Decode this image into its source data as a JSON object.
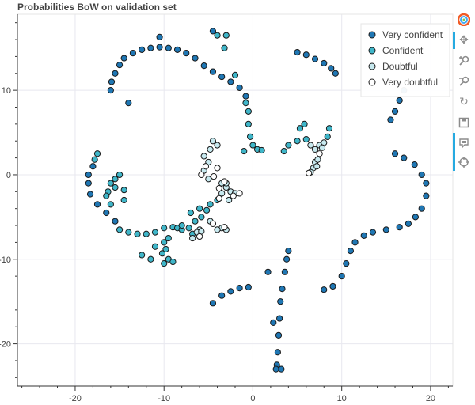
{
  "chart_data": {
    "type": "scatter",
    "title": "Probabilities BoW on validation set",
    "xlabel": "",
    "ylabel": "",
    "xlim": [
      -26.5,
      22.5
    ],
    "ylim": [
      -25,
      19
    ],
    "xticks": [
      -20,
      -10,
      0,
      10,
      20
    ],
    "yticks": [
      -20,
      -10,
      0,
      10
    ],
    "grid": true,
    "legend_position": "top-right",
    "series": [
      {
        "name": "Very confident",
        "color": "#1f77b4",
        "points": [
          [
            -16,
            10
          ],
          [
            -15.9,
            11
          ],
          [
            -15.5,
            12
          ],
          [
            -15,
            13
          ],
          [
            -14.5,
            13.8
          ],
          [
            -13.5,
            14.4
          ],
          [
            -12.5,
            14.8
          ],
          [
            -11.5,
            15
          ],
          [
            -10.5,
            15.1
          ],
          [
            -9.5,
            15
          ],
          [
            -8.5,
            14.8
          ],
          [
            -7.5,
            14.4
          ],
          [
            -6.5,
            13.8
          ],
          [
            -5.5,
            12.9
          ],
          [
            -4.5,
            12.2
          ],
          [
            -3.5,
            11.6
          ],
          [
            -2.5,
            11
          ],
          [
            -1.5,
            10.3
          ],
          [
            -0.8,
            9.3
          ],
          [
            -4.5,
            17
          ],
          [
            -14,
            8.5
          ],
          [
            -10.5,
            16.3
          ],
          [
            5,
            14.5
          ],
          [
            6,
            14.2
          ],
          [
            7,
            13.7
          ],
          [
            8,
            13.2
          ],
          [
            8.8,
            12.6
          ],
          [
            9.3,
            12
          ],
          [
            15.5,
            6.5
          ],
          [
            16,
            7.5
          ],
          [
            16.5,
            8.8
          ],
          [
            17,
            10
          ],
          [
            16,
            2.5
          ],
          [
            17,
            2
          ],
          [
            18.2,
            1.2
          ],
          [
            19,
            0
          ],
          [
            19.5,
            -1
          ],
          [
            19.5,
            -2.5
          ],
          [
            19,
            -4
          ],
          [
            18.3,
            -5
          ],
          [
            17.5,
            -5.8
          ],
          [
            16.5,
            -6.2
          ],
          [
            15,
            -6.5
          ],
          [
            13.5,
            -6.8
          ],
          [
            12.5,
            -7.2
          ],
          [
            11.5,
            -8
          ],
          [
            11,
            -9
          ],
          [
            10.5,
            -10.5
          ],
          [
            10,
            -12
          ],
          [
            9,
            -13.2
          ],
          [
            8,
            -13.6
          ],
          [
            -4.5,
            -15.2
          ],
          [
            -3.5,
            -14.3
          ],
          [
            -2.5,
            -13.8
          ],
          [
            -1.5,
            -13.4
          ],
          [
            -0.5,
            -13.3
          ],
          [
            4,
            -9
          ],
          [
            3.8,
            -10
          ],
          [
            3.6,
            -11.5
          ],
          [
            3.3,
            -13.5
          ],
          [
            3.1,
            -15
          ],
          [
            3,
            -17
          ],
          [
            2.9,
            -19
          ],
          [
            2.8,
            -21
          ],
          [
            2.7,
            -22.5
          ],
          [
            2.6,
            -23
          ],
          [
            3.2,
            -23
          ],
          [
            1.7,
            -11.5
          ],
          [
            2.3,
            -17.5
          ],
          [
            -18,
            1
          ],
          [
            -18.5,
            0
          ],
          [
            -18.5,
            -1
          ],
          [
            -18.3,
            -2.3
          ],
          [
            -17.5,
            -3.5
          ],
          [
            -16.5,
            -4.5
          ],
          [
            -15.5,
            -5.5
          ]
        ]
      },
      {
        "name": "Confident",
        "color": "#3fb6c9",
        "points": [
          [
            -0.8,
            8.5
          ],
          [
            -0.5,
            7.5
          ],
          [
            -0.5,
            6
          ],
          [
            -0.3,
            4.5
          ],
          [
            0,
            3.5
          ],
          [
            0.5,
            3
          ],
          [
            -1,
            2.8
          ],
          [
            1,
            2.9
          ],
          [
            -3,
            16.5
          ],
          [
            -4,
            16.5
          ],
          [
            -2,
            11.8
          ],
          [
            -3.2,
            15
          ],
          [
            3.5,
            2.8
          ],
          [
            4,
            3.5
          ],
          [
            5,
            4
          ],
          [
            6,
            4.2
          ],
          [
            5.3,
            5.5
          ],
          [
            5.8,
            6
          ],
          [
            8.4,
            4.5
          ],
          [
            8.6,
            5.5
          ],
          [
            -17.5,
            2.5
          ],
          [
            -17.8,
            1.8
          ],
          [
            -15.5,
            -0.5
          ],
          [
            -15,
            0
          ],
          [
            -16,
            -1
          ],
          [
            -15.5,
            -1.5
          ],
          [
            -16,
            -3.5
          ],
          [
            -14.5,
            -1.8
          ],
          [
            -14.5,
            -3
          ],
          [
            -16.3,
            -2
          ],
          [
            -16.5,
            -2.5
          ],
          [
            -15,
            -6.5
          ],
          [
            -14,
            -6.8
          ],
          [
            -13,
            -7
          ],
          [
            -12,
            -7
          ],
          [
            -11,
            -6.8
          ],
          [
            -10,
            -6.3
          ],
          [
            -9,
            -6.2
          ],
          [
            -8.5,
            -6.3
          ],
          [
            -8,
            -6.5
          ],
          [
            -12.5,
            -9.5
          ],
          [
            -11.5,
            -10
          ],
          [
            -11,
            -8.5
          ],
          [
            -10,
            -8
          ],
          [
            -10,
            -10.5
          ],
          [
            -9.5,
            -10
          ],
          [
            -10.2,
            -9.3
          ],
          [
            -9,
            -10.3
          ],
          [
            -8,
            -6
          ],
          [
            -9.5,
            -7.5
          ],
          [
            -9.8,
            -8.8
          ],
          [
            -7,
            -4.5
          ],
          [
            -6,
            -4
          ],
          [
            -5.2,
            -4.2
          ],
          [
            -4.8,
            -3.5
          ],
          [
            -4,
            -3
          ],
          [
            -5.8,
            -5
          ],
          [
            -6.5,
            -5.5
          ],
          [
            -7.2,
            -6.3
          ],
          [
            -6.8,
            -7
          ]
        ]
      },
      {
        "name": "Doubtful",
        "color": "#c7e9ef",
        "points": [
          [
            -5.5,
            2.2
          ],
          [
            -5,
            1.5
          ],
          [
            -5.5,
            0.5
          ],
          [
            -5,
            -0.5
          ],
          [
            -4.5,
            4
          ],
          [
            -4,
            3.5
          ],
          [
            -4.8,
            3
          ],
          [
            -3.5,
            -1
          ],
          [
            -3,
            -1.5
          ],
          [
            -2.5,
            -2
          ],
          [
            -2,
            -2.2
          ],
          [
            -3.5,
            -2.2
          ],
          [
            -2.7,
            -3
          ],
          [
            -3,
            -1
          ],
          [
            7,
            3
          ],
          [
            7.5,
            3.5
          ],
          [
            8,
            3.8
          ],
          [
            7.8,
            3.2
          ],
          [
            6.5,
            3.5
          ],
          [
            7,
            1.5
          ],
          [
            6.8,
            0.8
          ],
          [
            6.5,
            0.3
          ],
          [
            7.3,
            1.8
          ],
          [
            7.2,
            1
          ],
          [
            -6,
            -6.5
          ],
          [
            -6.8,
            -7.5
          ],
          [
            -6.3,
            -6.8
          ],
          [
            -5.8,
            -6.7
          ],
          [
            -4.8,
            -5.5
          ],
          [
            -3.5,
            -6.3
          ],
          [
            -3,
            -6.5
          ],
          [
            -4,
            -6.5
          ]
        ]
      },
      {
        "name": "Very doubtful",
        "color": "#ffffff",
        "points": [
          [
            -3.2,
            -0.8
          ],
          [
            -4,
            0.8
          ],
          [
            -5.3,
            1
          ],
          [
            -3.8,
            -2.8
          ],
          [
            -2.2,
            -2.5
          ],
          [
            -1.5,
            -2.2
          ],
          [
            -6,
            -7.3
          ],
          [
            -3.2,
            -6.2
          ],
          [
            -4.5,
            -5.8
          ],
          [
            6.3,
            0.2
          ],
          [
            7.5,
            2.5
          ],
          [
            -5.8,
            0
          ],
          [
            -4.4,
            -0.2
          ],
          [
            -3.8,
            -1.6
          ]
        ]
      }
    ]
  },
  "toolbar": {
    "logo_icon": "bokeh-logo-icon",
    "tools": [
      "pan-icon",
      "box-zoom-icon",
      "wheel-zoom-icon",
      "reset-icon",
      "save-icon",
      "hover-icon",
      "crosshair-icon"
    ]
  }
}
